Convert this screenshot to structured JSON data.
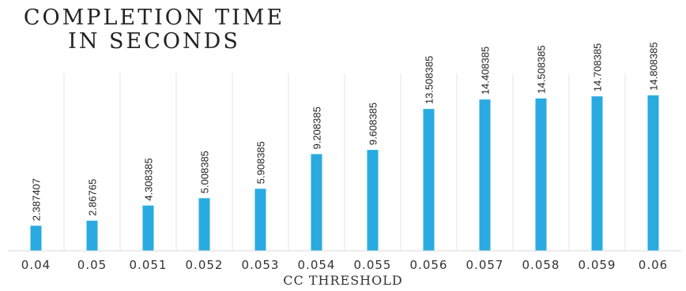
{
  "chart_data": {
    "type": "bar",
    "title_lines": [
      "COMPLETION TIME",
      "IN SECONDS"
    ],
    "xlabel": "CC THRESHOLD",
    "categories": [
      "0.04",
      "0.05",
      "0.051",
      "0.052",
      "0.053",
      "0.054",
      "0.055",
      "0.056",
      "0.057",
      "0.058",
      "0.059",
      "0.06"
    ],
    "values": [
      2.387407,
      2.86765,
      4.308385,
      5.008385,
      5.908385,
      9.208385,
      9.608385,
      13.508385,
      14.408385,
      14.508385,
      14.708385,
      14.808385
    ],
    "labels": [
      "2.387407",
      "2.86765",
      "4.308385",
      "5.008385",
      "5.908385",
      "9.208385",
      "9.608385",
      "13.508385",
      "14.408385",
      "14.508385",
      "14.708385",
      "14.808385"
    ],
    "ylim": [
      0,
      16.9
    ],
    "bar_color": "#29abe2",
    "gridlines": "vertical",
    "legend": "none"
  }
}
